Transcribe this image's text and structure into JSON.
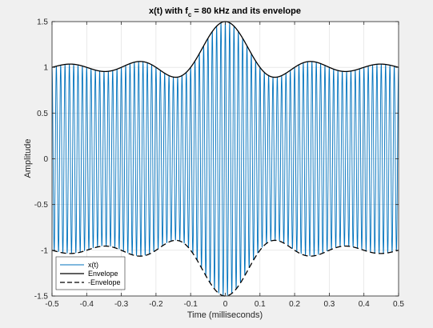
{
  "chart_data": {
    "type": "line",
    "title_main": "x(t) with f",
    "title_sub": "c",
    "title_rest": " = 80 kHz and its envelope",
    "xlabel": "Time (milliseconds)",
    "ylabel": "Amplitude",
    "xlim": [
      -0.5,
      0.5
    ],
    "ylim": [
      -1.5,
      1.5
    ],
    "xticks": [
      -0.5,
      -0.4,
      -0.3,
      -0.2,
      -0.1,
      0,
      0.1,
      0.2,
      0.3,
      0.4,
      0.5
    ],
    "xtick_labels": [
      "-0.5",
      "-0.4",
      "-0.3",
      "-0.2",
      "-0.1",
      "0",
      "0.1",
      "0.2",
      "0.3",
      "0.4",
      "0.5"
    ],
    "yticks": [
      -1.5,
      -1,
      -0.5,
      0,
      0.5,
      1,
      1.5
    ],
    "ytick_labels": [
      "-1.5",
      "-1",
      "-0.5",
      "0",
      "0.5",
      "1",
      "1.5"
    ],
    "grid": true,
    "legend_position": "bottom-left",
    "carrier_frequency_khz": 80,
    "envelope_model": {
      "description": "1 + 0.5*sinc(t/0.1ms)",
      "offset": 1,
      "amplitude": 0.5,
      "sinc_scale_ms": 0.1
    },
    "series": [
      {
        "name": "x(t)",
        "color": "#0072BD",
        "style": "solid"
      },
      {
        "name": "Envelope",
        "color": "#000000",
        "style": "solid"
      },
      {
        "name": "-Envelope",
        "color": "#000000",
        "style": "dashed"
      }
    ]
  }
}
